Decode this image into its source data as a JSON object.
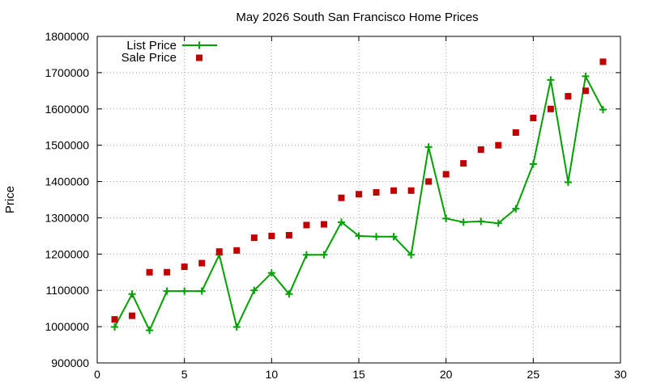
{
  "chart_data": {
    "type": "line",
    "title": "May 2026 South San Francisco Home Prices",
    "xlabel": "",
    "ylabel": "Price",
    "xlim": [
      0,
      30
    ],
    "ylim": [
      900000,
      1800000
    ],
    "x_ticks": [
      0,
      5,
      10,
      15,
      20,
      25,
      30
    ],
    "y_ticks": [
      900000,
      1000000,
      1100000,
      1200000,
      1300000,
      1400000,
      1500000,
      1600000,
      1700000,
      1800000
    ],
    "grid": true,
    "legend_position": "top-left",
    "series": [
      {
        "name": "List Price",
        "style": "line-with-plus-markers",
        "color": "#00a000",
        "x": [
          1,
          2,
          3,
          4,
          5,
          6,
          7,
          8,
          9,
          10,
          11,
          12,
          13,
          14,
          15,
          16,
          17,
          18,
          19,
          20,
          21,
          22,
          23,
          24,
          25,
          26,
          27,
          28,
          29
        ],
        "values": [
          999000,
          1090000,
          990000,
          1098000,
          1098000,
          1098000,
          1198000,
          999000,
          1100000,
          1148000,
          1090000,
          1198000,
          1198000,
          1288000,
          1250000,
          1248000,
          1248000,
          1198000,
          1495000,
          1298000,
          1288000,
          1290000,
          1285000,
          1325000,
          1448000,
          1680000,
          1398000,
          1690000,
          1598000
        ]
      },
      {
        "name": "Sale Price",
        "style": "square-markers",
        "color": "#c00000",
        "x": [
          1,
          2,
          3,
          4,
          5,
          6,
          7,
          8,
          9,
          10,
          11,
          12,
          13,
          14,
          15,
          16,
          17,
          18,
          19,
          20,
          21,
          22,
          23,
          24,
          25,
          26,
          27,
          28,
          29
        ],
        "values": [
          1020000,
          1030000,
          1150000,
          1150000,
          1165000,
          1175000,
          1207000,
          1210000,
          1245000,
          1250000,
          1252000,
          1280000,
          1282000,
          1355000,
          1365000,
          1370000,
          1375000,
          1375000,
          1400000,
          1420000,
          1450000,
          1488000,
          1500000,
          1535000,
          1575000,
          1600000,
          1635000,
          1650000,
          1730000
        ]
      }
    ]
  }
}
